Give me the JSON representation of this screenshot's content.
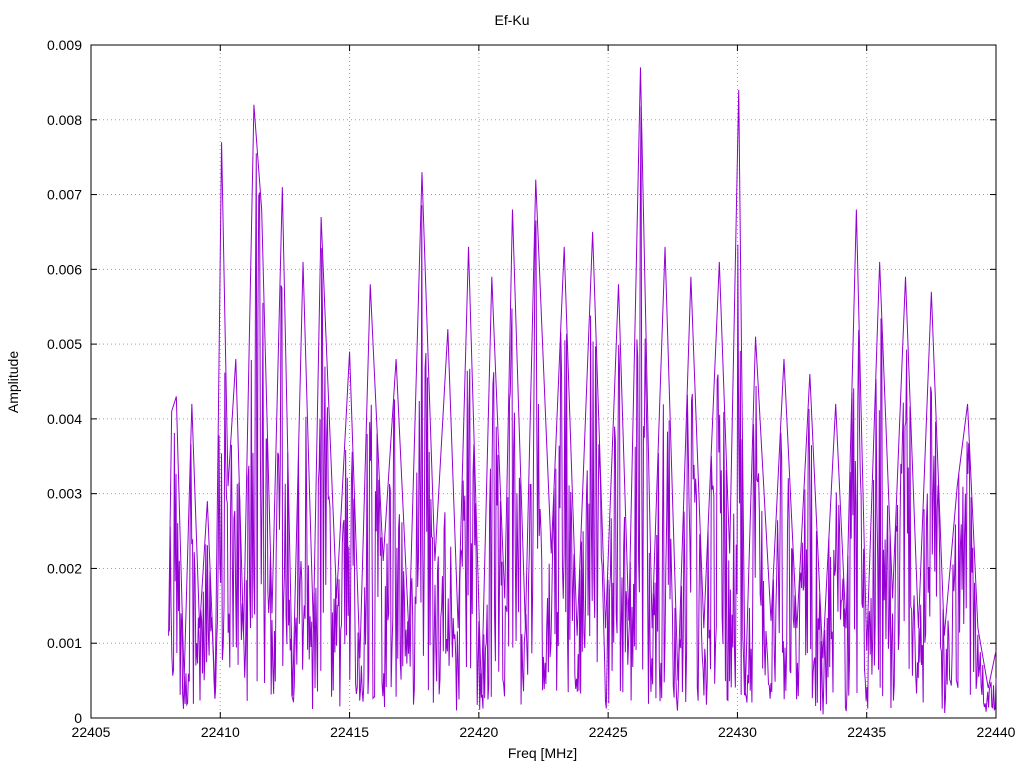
{
  "chart_data": {
    "type": "line",
    "title": "Ef-Ku",
    "xlabel": "Freq [MHz]",
    "ylabel": "Amplitude",
    "xlim": [
      22405,
      22440
    ],
    "ylim": [
      0,
      0.009
    ],
    "grid": true,
    "grid_style": "dotted",
    "x_ticks": [
      22405,
      22410,
      22415,
      22420,
      22425,
      22430,
      22435,
      22440
    ],
    "y_ticks": [
      0,
      0.001,
      0.002,
      0.003,
      0.004,
      0.005,
      0.006,
      0.007,
      0.008,
      0.009
    ],
    "x_tick_labels": [
      "22405",
      "22410",
      "22415",
      "22420",
      "22425",
      "22430",
      "22435",
      "22440"
    ],
    "y_tick_labels": [
      "0",
      "0.001",
      "0.002",
      "0.003",
      "0.004",
      "0.005",
      "0.006",
      "0.007",
      "0.008",
      "0.009"
    ],
    "series": [
      {
        "color": "#9400d3",
        "x_start": 22408,
        "x_end": 22440,
        "x_step": 0.032,
        "points": [
          [
            22408.0,
            0.0011
          ],
          [
            22408.12,
            0.0041
          ],
          [
            22408.3,
            0.0043
          ],
          [
            22408.6,
            0.0005
          ],
          [
            22408.9,
            0.0042
          ],
          [
            22409.2,
            0.0012
          ],
          [
            22409.5,
            0.0029
          ],
          [
            22409.8,
            0.0003
          ],
          [
            22410.05,
            0.0077
          ],
          [
            22410.3,
            0.0031
          ],
          [
            22410.6,
            0.0048
          ],
          [
            22410.9,
            0.0011
          ],
          [
            22411.3,
            0.0082
          ],
          [
            22411.6,
            0.0068
          ],
          [
            22412.0,
            0.0014
          ],
          [
            22412.4,
            0.0071
          ],
          [
            22412.8,
            0.0003
          ],
          [
            22413.2,
            0.0061
          ],
          [
            22413.6,
            0.0012
          ],
          [
            22413.9,
            0.0067
          ],
          [
            22414.5,
            0.0016
          ],
          [
            22415.0,
            0.0049
          ],
          [
            22415.4,
            0.0008
          ],
          [
            22415.8,
            0.0058
          ],
          [
            22416.3,
            0.0021
          ],
          [
            22416.8,
            0.0048
          ],
          [
            22417.3,
            0.0011
          ],
          [
            22417.8,
            0.0073
          ],
          [
            22418.3,
            0.0021
          ],
          [
            22418.8,
            0.0052
          ],
          [
            22419.2,
            0.0012
          ],
          [
            22419.6,
            0.0063
          ],
          [
            22420.1,
            0.0003
          ],
          [
            22420.5,
            0.0059
          ],
          [
            22421.0,
            0.0016
          ],
          [
            22421.3,
            0.0068
          ],
          [
            22421.8,
            0.0012
          ],
          [
            22422.2,
            0.0072
          ],
          [
            22422.8,
            0.0022
          ],
          [
            22423.3,
            0.0063
          ],
          [
            22423.8,
            0.0011
          ],
          [
            22424.4,
            0.0065
          ],
          [
            22424.9,
            0.0012
          ],
          [
            22425.4,
            0.0058
          ],
          [
            22425.8,
            0.0013
          ],
          [
            22426.25,
            0.0087
          ],
          [
            22426.7,
            0.0012
          ],
          [
            22427.2,
            0.0063
          ],
          [
            22427.7,
            0.0005
          ],
          [
            22428.2,
            0.0059
          ],
          [
            22428.7,
            0.0012
          ],
          [
            22429.3,
            0.0061
          ],
          [
            22429.7,
            0.0022
          ],
          [
            22430.05,
            0.0084
          ],
          [
            22430.3,
            0.0003
          ],
          [
            22430.7,
            0.0051
          ],
          [
            22431.3,
            0.0013
          ],
          [
            22431.8,
            0.0048
          ],
          [
            22432.3,
            0.0012
          ],
          [
            22432.8,
            0.0046
          ],
          [
            22433.3,
            0.0008
          ],
          [
            22433.8,
            0.0042
          ],
          [
            22434.2,
            0.0012
          ],
          [
            22434.6,
            0.0068
          ],
          [
            22435.0,
            0.0009
          ],
          [
            22435.5,
            0.0061
          ],
          [
            22436.0,
            0.0016
          ],
          [
            22436.5,
            0.0059
          ],
          [
            22437.0,
            0.0012
          ],
          [
            22437.5,
            0.0057
          ],
          [
            22438.0,
            0.0011
          ],
          [
            22438.5,
            0.0031
          ],
          [
            22438.9,
            0.0042
          ],
          [
            22439.3,
            0.0012
          ],
          [
            22439.7,
            0.0004
          ],
          [
            22440.0,
            0.0009
          ]
        ]
      }
    ]
  }
}
